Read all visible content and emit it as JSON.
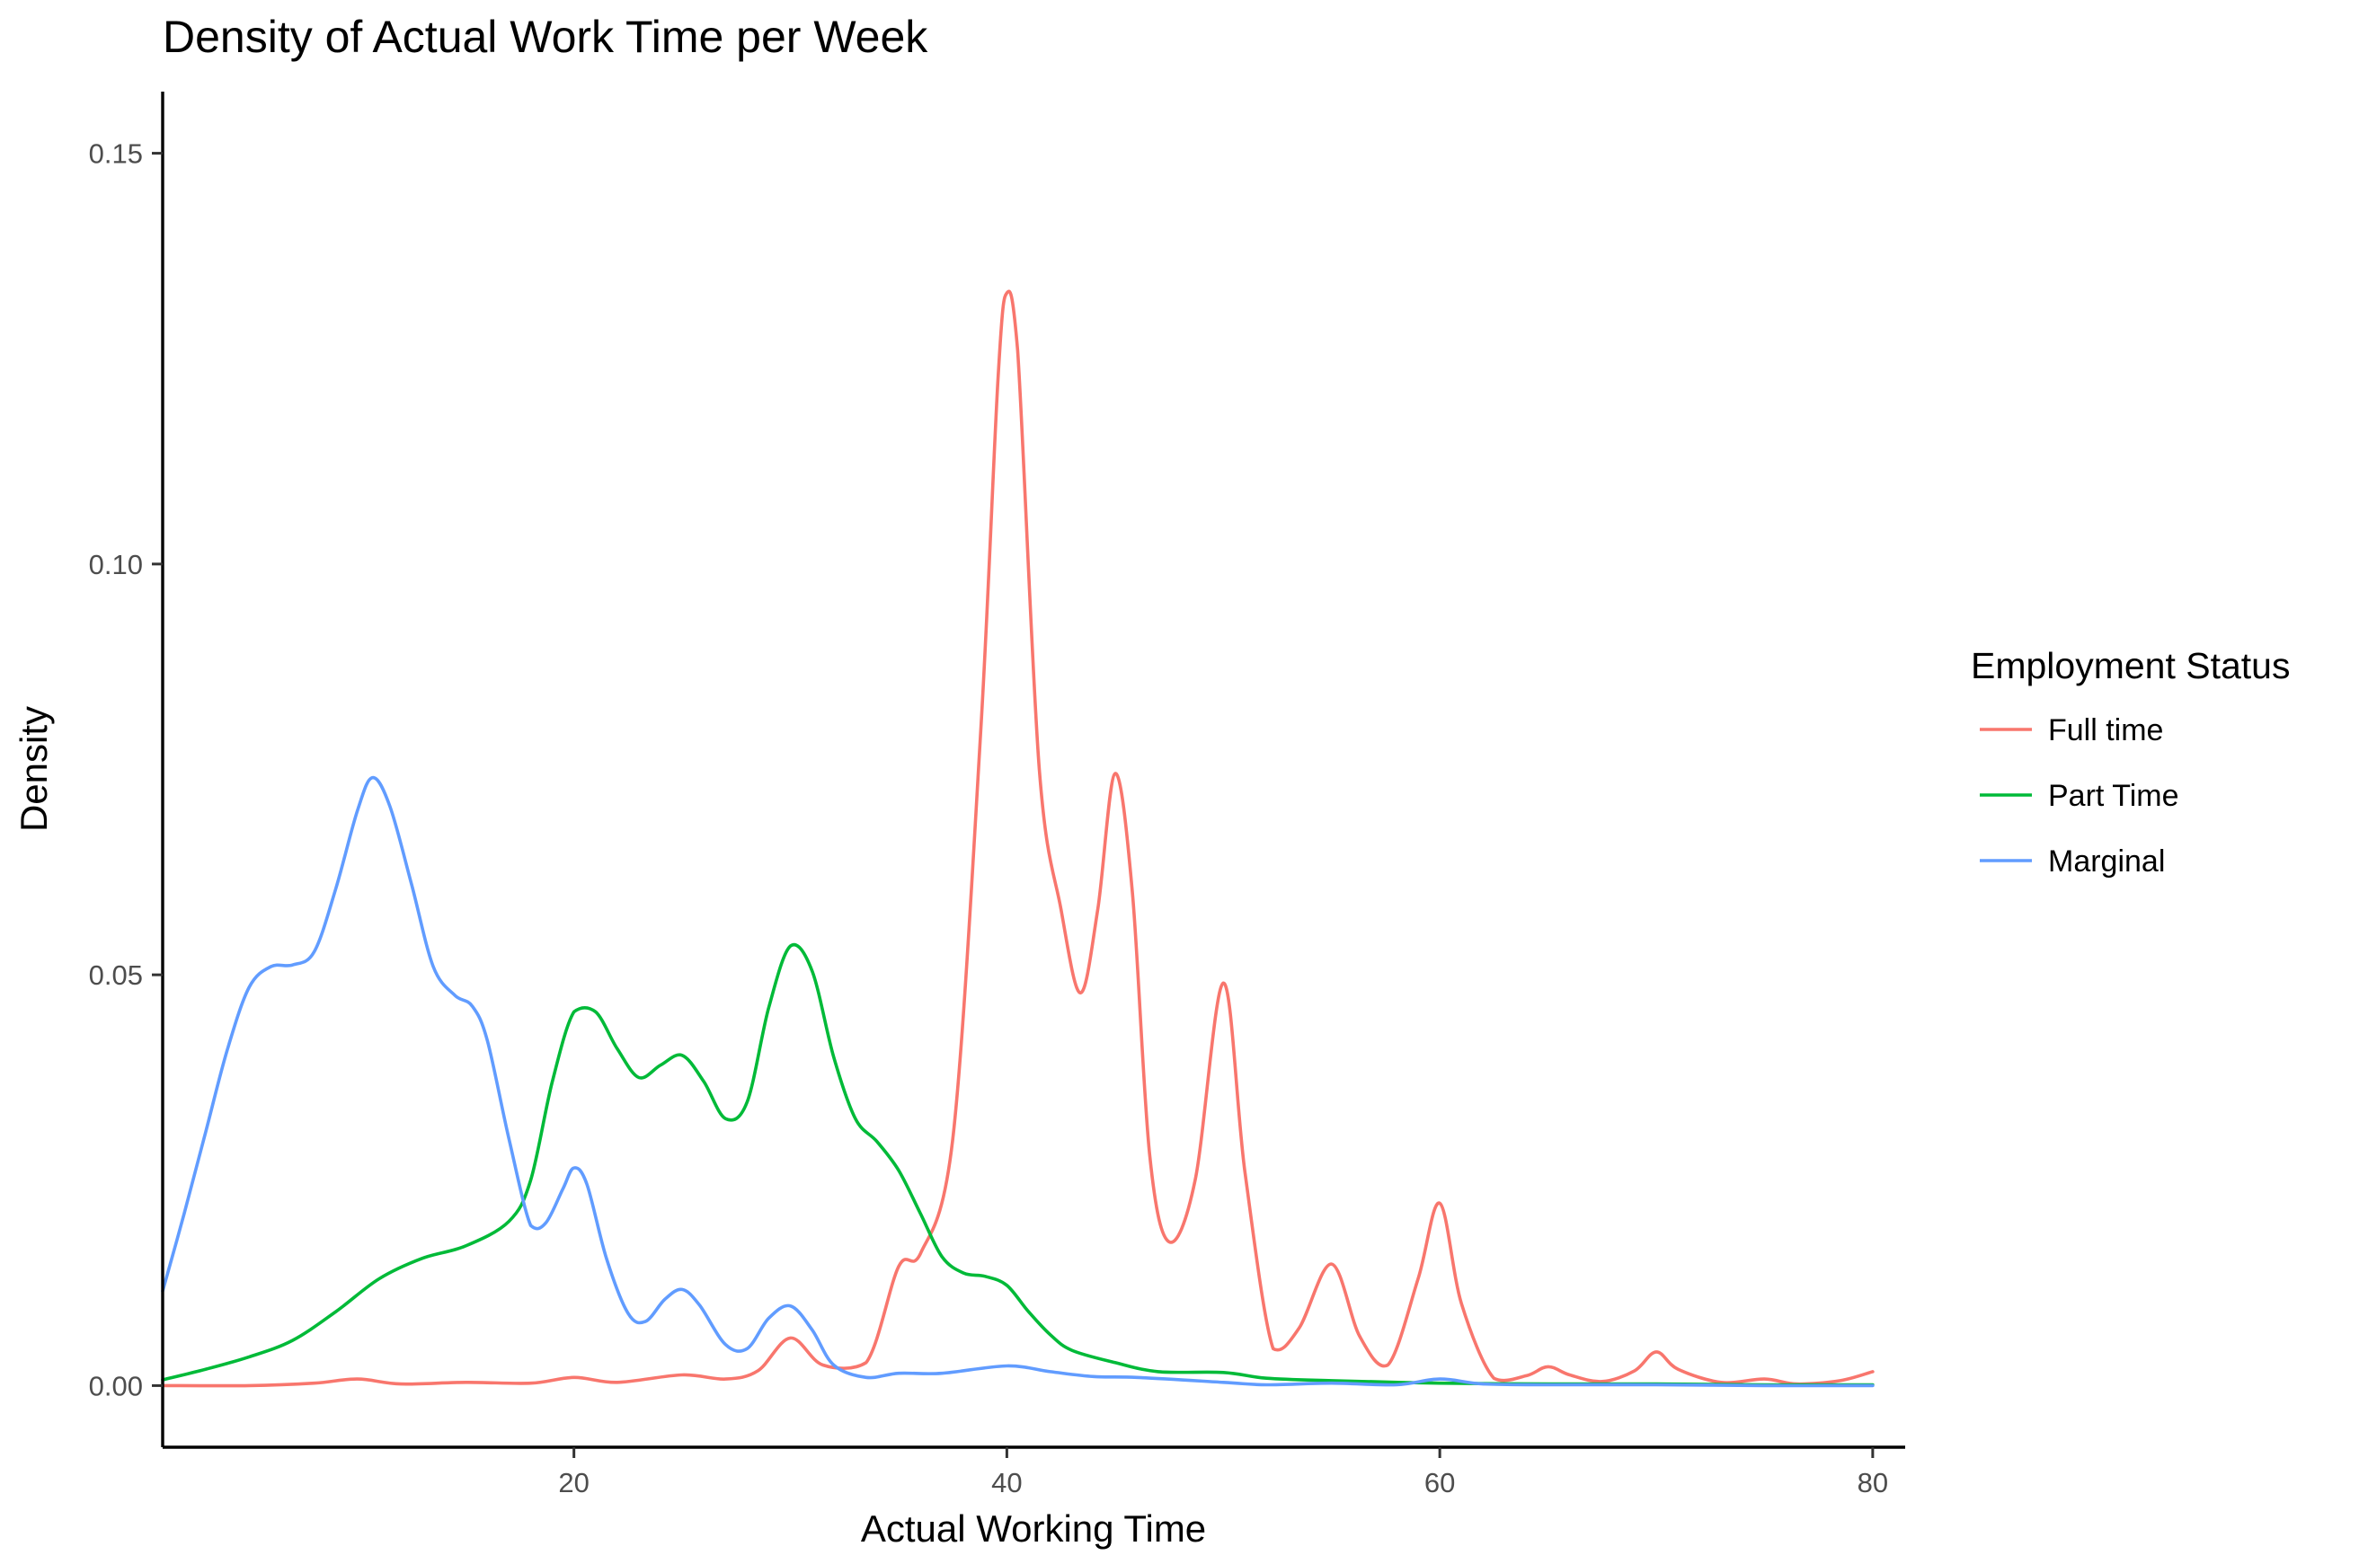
{
  "chart_data": {
    "type": "line",
    "title": "Density of Actual Work Time per Week",
    "xlabel": "Actual Working Time",
    "ylabel": "Density",
    "xlim": [
      1,
      81.5
    ],
    "ylim": [
      -0.0075,
      0.1575
    ],
    "x_ticks": [
      20,
      40,
      60,
      80
    ],
    "x_tick_labels": [
      "20",
      "40",
      "60",
      "80"
    ],
    "y_ticks": [
      0.0,
      0.05,
      0.1,
      0.15
    ],
    "y_tick_labels": [
      "0.00",
      "0.05",
      "0.10",
      "0.15"
    ],
    "grid": false,
    "legend": {
      "title": "Employment Status",
      "position": "right"
    },
    "series": [
      {
        "name": "Full time",
        "color": "#F8766D",
        "points": [
          [
            1,
            0
          ],
          [
            5,
            0
          ],
          [
            8,
            0.0003
          ],
          [
            10,
            0.0008
          ],
          [
            12,
            0.0002
          ],
          [
            15,
            0.0004
          ],
          [
            18,
            0.0003
          ],
          [
            20,
            0.001
          ],
          [
            22,
            0.0004
          ],
          [
            25,
            0.0013
          ],
          [
            27,
            0.0008
          ],
          [
            28.5,
            0.0018
          ],
          [
            30,
            0.0058
          ],
          [
            31.5,
            0.0025
          ],
          [
            33.5,
            0.0028
          ],
          [
            35,
            0.0145
          ],
          [
            36,
            0.016
          ],
          [
            37.5,
            0.03
          ],
          [
            38.8,
            0.08
          ],
          [
            39.6,
            0.123
          ],
          [
            40,
            0.133
          ],
          [
            40.5,
            0.126
          ],
          [
            41.5,
            0.075
          ],
          [
            42.5,
            0.058
          ],
          [
            43.4,
            0.0478
          ],
          [
            44.2,
            0.058
          ],
          [
            45,
            0.0745
          ],
          [
            45.8,
            0.06
          ],
          [
            46.6,
            0.028
          ],
          [
            47.5,
            0.0175
          ],
          [
            48.7,
            0.025
          ],
          [
            50,
            0.049
          ],
          [
            51,
            0.026
          ],
          [
            52.3,
            0.0045
          ],
          [
            53.5,
            0.007
          ],
          [
            55,
            0.0148
          ],
          [
            56.3,
            0.006
          ],
          [
            57.6,
            0.0025
          ],
          [
            59,
            0.013
          ],
          [
            60,
            0.0222
          ],
          [
            61,
            0.01
          ],
          [
            62.5,
            0.0009
          ],
          [
            64,
            0.0012
          ],
          [
            65,
            0.0023
          ],
          [
            66,
            0.0013
          ],
          [
            67.5,
            0.0005
          ],
          [
            69,
            0.0018
          ],
          [
            70,
            0.0041
          ],
          [
            71,
            0.002
          ],
          [
            73,
            0.0004
          ],
          [
            75,
            0.0008
          ],
          [
            76.5,
            0.0002
          ],
          [
            78.5,
            0.0006
          ],
          [
            80,
            0.0017
          ]
        ]
      },
      {
        "name": "Part Time",
        "color": "#00BA38",
        "points": [
          [
            1,
            0.0007
          ],
          [
            3,
            0.002
          ],
          [
            5,
            0.0035
          ],
          [
            7,
            0.0055
          ],
          [
            9,
            0.009
          ],
          [
            11,
            0.013
          ],
          [
            13,
            0.0155
          ],
          [
            15,
            0.017
          ],
          [
            17,
            0.02
          ],
          [
            18,
            0.025
          ],
          [
            19,
            0.037
          ],
          [
            20,
            0.0455
          ],
          [
            21,
            0.0455
          ],
          [
            22,
            0.041
          ],
          [
            23,
            0.0375
          ],
          [
            24,
            0.039
          ],
          [
            25,
            0.0402
          ],
          [
            26,
            0.037
          ],
          [
            27,
            0.0325
          ],
          [
            28,
            0.0345
          ],
          [
            29,
            0.046
          ],
          [
            30,
            0.0535
          ],
          [
            31,
            0.0505
          ],
          [
            32,
            0.04
          ],
          [
            33,
            0.0325
          ],
          [
            34,
            0.0297
          ],
          [
            35,
            0.0262
          ],
          [
            36,
            0.021
          ],
          [
            37,
            0.0157
          ],
          [
            38,
            0.0137
          ],
          [
            39,
            0.0133
          ],
          [
            40,
            0.0122
          ],
          [
            41,
            0.009
          ],
          [
            42,
            0.0062
          ],
          [
            43,
            0.0043
          ],
          [
            45,
            0.0028
          ],
          [
            47,
            0.0017
          ],
          [
            50,
            0.0016
          ],
          [
            52,
            0.0009
          ],
          [
            55,
            0.0006
          ],
          [
            60,
            0.0003
          ],
          [
            65,
            0.0002
          ],
          [
            70,
            0.0002
          ],
          [
            75,
            0.0001
          ],
          [
            80,
            0.0001
          ]
        ]
      },
      {
        "name": "Marginal",
        "color": "#619CFF",
        "points": [
          [
            1,
            0.0115
          ],
          [
            2,
            0.021
          ],
          [
            3,
            0.031
          ],
          [
            4,
            0.041
          ],
          [
            5,
            0.0485
          ],
          [
            6,
            0.051
          ],
          [
            7,
            0.0512
          ],
          [
            8,
            0.0528
          ],
          [
            9,
            0.0605
          ],
          [
            10,
            0.07
          ],
          [
            10.7,
            0.074
          ],
          [
            11.5,
            0.0705
          ],
          [
            12.5,
            0.061
          ],
          [
            13.5,
            0.051
          ],
          [
            14.5,
            0.0475
          ],
          [
            15.3,
            0.0462
          ],
          [
            16,
            0.042
          ],
          [
            17,
            0.03
          ],
          [
            18,
            0.0195
          ],
          [
            18.7,
            0.0198
          ],
          [
            19.5,
            0.024
          ],
          [
            20,
            0.0265
          ],
          [
            20.6,
            0.0245
          ],
          [
            21.5,
            0.0155
          ],
          [
            22.5,
            0.0088
          ],
          [
            23.3,
            0.0078
          ],
          [
            24.2,
            0.0105
          ],
          [
            25,
            0.0117
          ],
          [
            25.8,
            0.0098
          ],
          [
            27,
            0.005
          ],
          [
            28,
            0.0045
          ],
          [
            29,
            0.0082
          ],
          [
            30,
            0.0097
          ],
          [
            31,
            0.0068
          ],
          [
            32,
            0.0025
          ],
          [
            33.5,
            0.001
          ],
          [
            35,
            0.0015
          ],
          [
            37,
            0.0015
          ],
          [
            40,
            0.0024
          ],
          [
            42,
            0.0017
          ],
          [
            44,
            0.0011
          ],
          [
            46,
            0.001
          ],
          [
            50,
            0.0004
          ],
          [
            52,
            0.0001
          ],
          [
            55,
            0.0003
          ],
          [
            58,
            0.0001
          ],
          [
            60,
            0.0008
          ],
          [
            62,
            0.0002
          ],
          [
            65,
            0.0001
          ],
          [
            70,
            0.0001
          ],
          [
            75,
            0.0
          ],
          [
            80,
            0.0
          ]
        ]
      }
    ]
  }
}
